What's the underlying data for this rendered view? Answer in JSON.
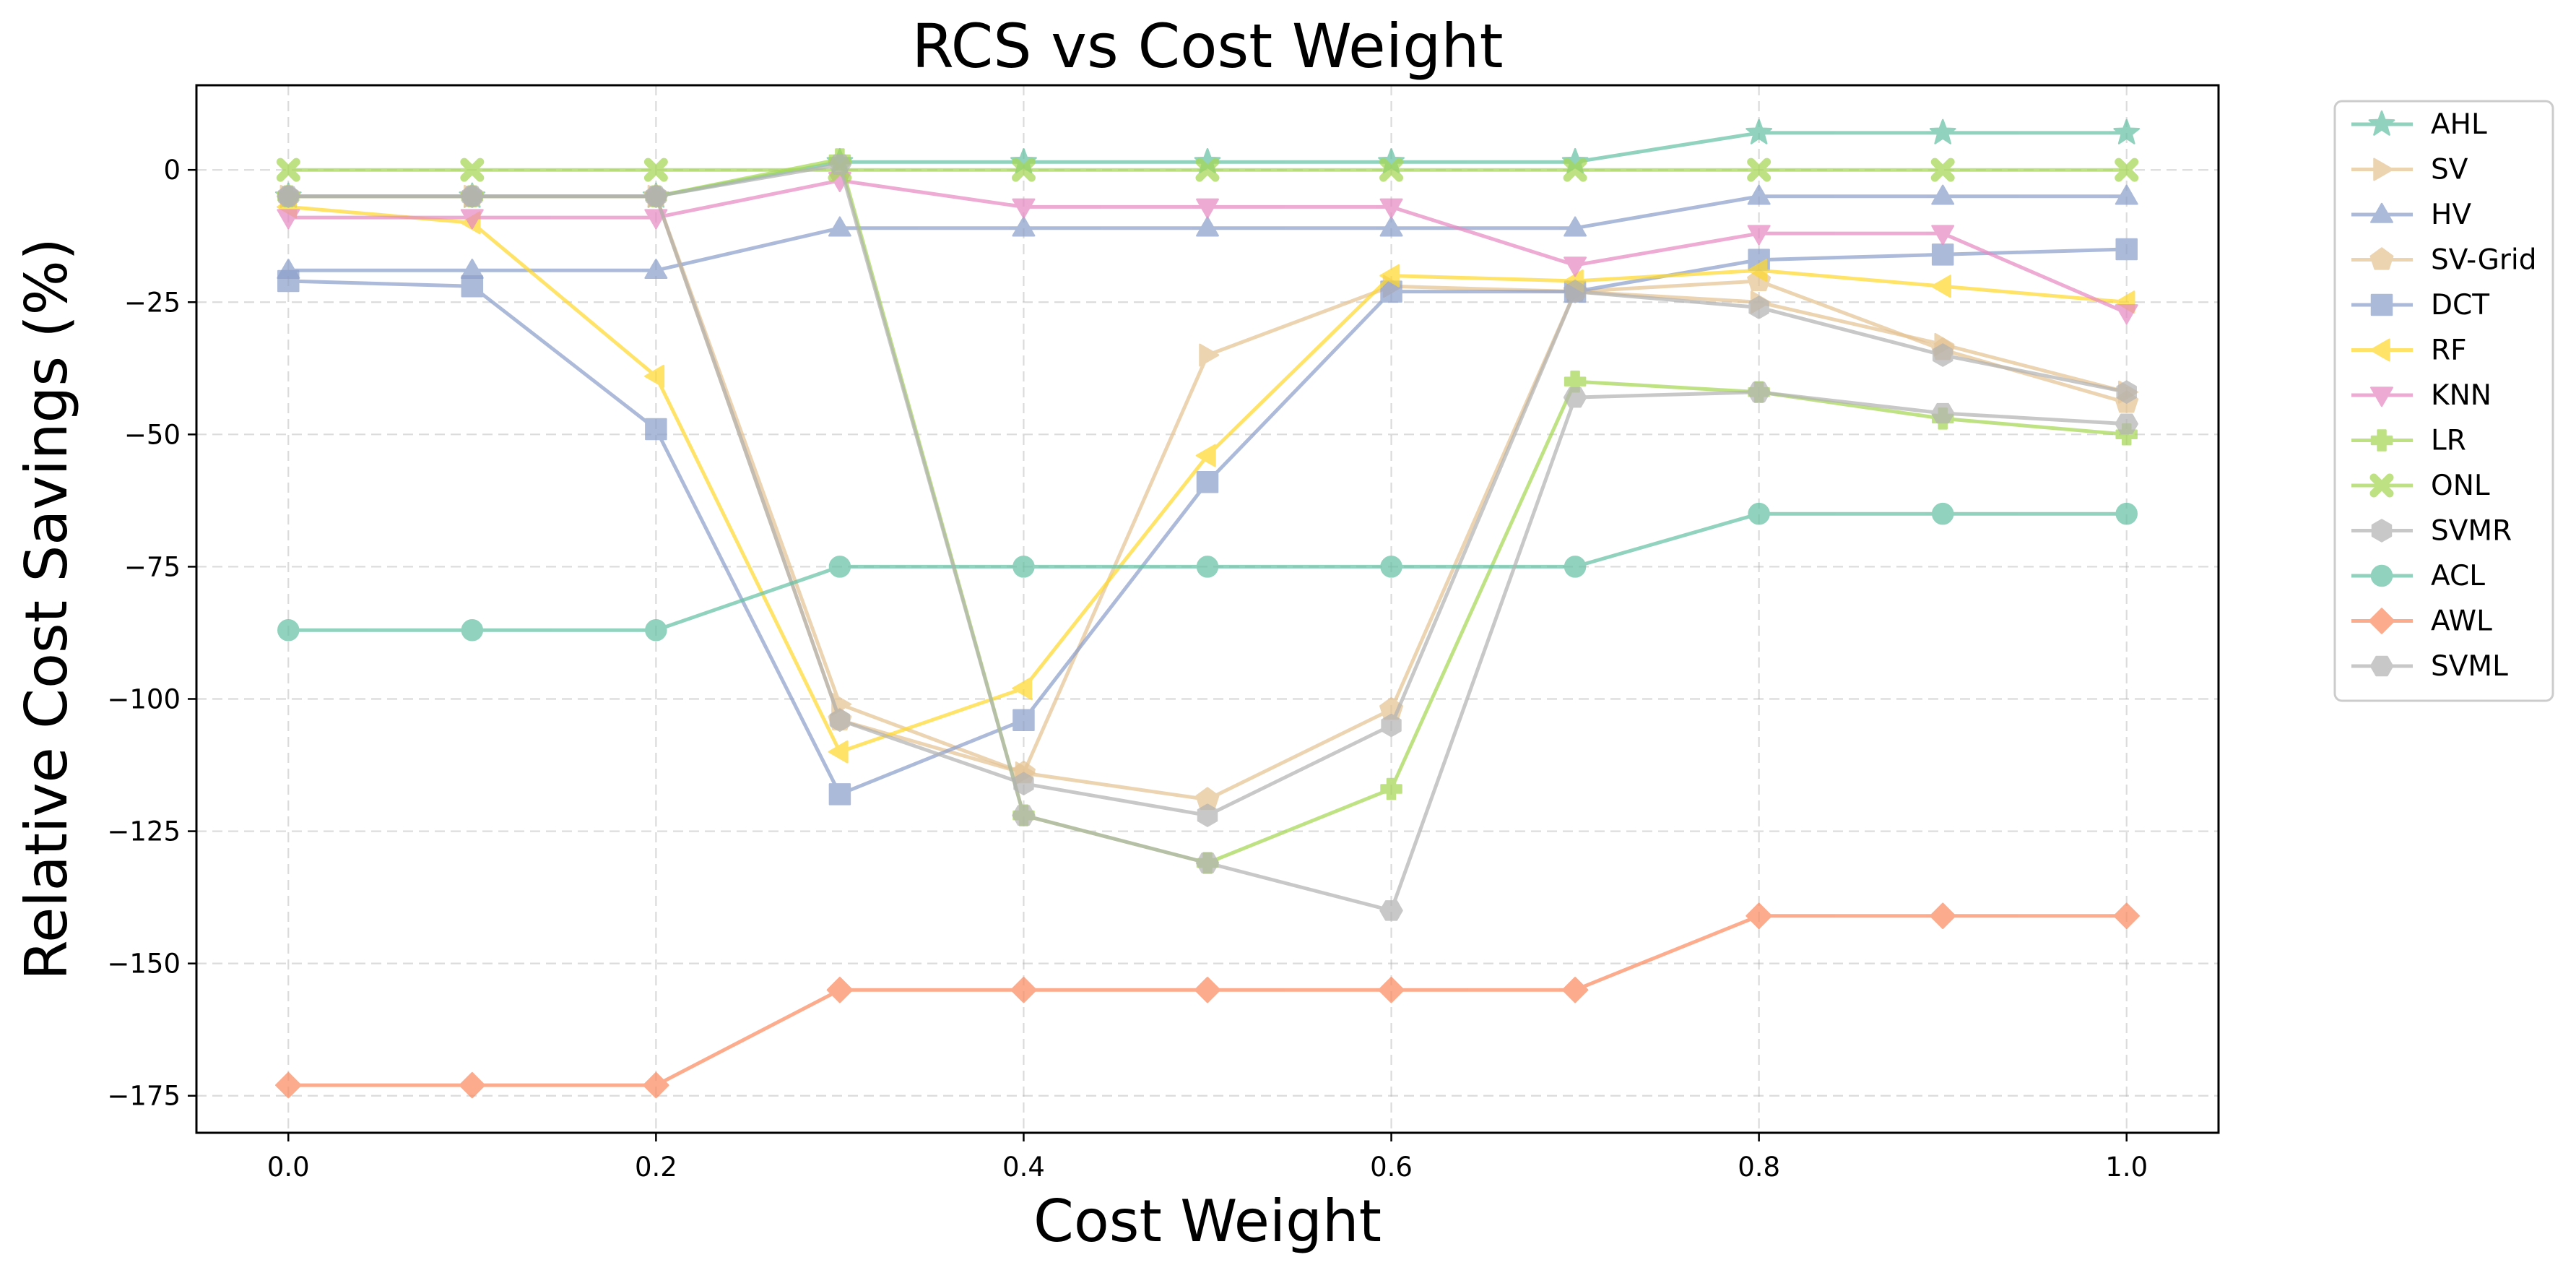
{
  "chart_data": {
    "type": "line",
    "title": "RCS vs Cost Weight",
    "xlabel": "Cost Weight",
    "ylabel": "Relative Cost Savings (%)",
    "xlim": [
      -0.05,
      1.05
    ],
    "ylim": [
      -182,
      16
    ],
    "xticks": [
      0.0,
      0.2,
      0.4,
      0.6,
      0.8,
      1.0
    ],
    "xtick_labels": [
      "0.0",
      "0.2",
      "0.4",
      "0.6",
      "0.8",
      "1.0"
    ],
    "yticks": [
      0,
      -25,
      -50,
      -75,
      -100,
      -125,
      -150,
      -175
    ],
    "ytick_labels": [
      "0",
      "−25",
      "−50",
      "−75",
      "−100",
      "−125",
      "−150",
      "−175"
    ],
    "grid": true,
    "legend_position": "outside-top-right",
    "x": [
      0.0,
      0.1,
      0.2,
      0.3,
      0.4,
      0.5,
      0.6,
      0.7,
      0.8,
      0.9,
      1.0
    ],
    "series": [
      {
        "name": "AHL",
        "marker": "star",
        "color": "#66c2a5",
        "values": [
          -5,
          -5,
          -5,
          1.5,
          1.5,
          1.5,
          1.5,
          1.5,
          7,
          7,
          7
        ]
      },
      {
        "name": "SV",
        "marker": "triangle-right",
        "color": "#e5c494",
        "values": [
          -5,
          -5,
          -5,
          -101,
          -114,
          -35,
          -22,
          -23,
          -25,
          -33,
          -42
        ]
      },
      {
        "name": "HV",
        "marker": "triangle-up",
        "color": "#8da0cb",
        "values": [
          -19,
          -19,
          -19,
          -11,
          -11,
          -11,
          -11,
          -11,
          -5,
          -5,
          -5
        ]
      },
      {
        "name": "SV-Grid",
        "marker": "pentagon",
        "color": "#e5c494",
        "values": [
          -5,
          -5,
          -5,
          -104,
          -114,
          -119,
          -102,
          -23,
          -21,
          -34,
          -44
        ]
      },
      {
        "name": "DCT",
        "marker": "square",
        "color": "#8da0cb",
        "values": [
          -21,
          -22,
          -49,
          -118,
          -104,
          -59,
          -23,
          -23,
          -17,
          -16,
          -15
        ]
      },
      {
        "name": "RF",
        "marker": "triangle-left",
        "color": "#ffd92f",
        "values": [
          -7,
          -10,
          -39,
          -110,
          -98,
          -54,
          -20,
          -21,
          -19,
          -22,
          -25
        ]
      },
      {
        "name": "KNN",
        "marker": "triangle-down",
        "color": "#e78ac3",
        "values": [
          -9,
          -9,
          -9,
          -2,
          -7,
          -7,
          -7,
          -18,
          -12,
          -12,
          -27
        ]
      },
      {
        "name": "LR",
        "marker": "plus",
        "color": "#a6d854",
        "values": [
          -5,
          -5,
          -5,
          2,
          -122,
          -131,
          -117,
          -40,
          -42,
          -47,
          -50
        ]
      },
      {
        "name": "ONL",
        "marker": "x",
        "color": "#a6d854",
        "values": [
          0,
          0,
          0,
          0,
          0,
          0,
          0,
          0,
          0,
          0,
          0
        ]
      },
      {
        "name": "SVMR",
        "marker": "hexagon",
        "color": "#b3b3b3",
        "values": [
          -5,
          -5,
          -5,
          -104,
          -116,
          -122,
          -105,
          -23,
          -26,
          -35,
          -42
        ]
      },
      {
        "name": "ACL",
        "marker": "circle",
        "color": "#66c2a5",
        "values": [
          -87,
          -87,
          -87,
          -75,
          -75,
          -75,
          -75,
          -75,
          -65,
          -65,
          -65
        ]
      },
      {
        "name": "AWL",
        "marker": "diamond",
        "color": "#fc8d62",
        "values": [
          -173,
          -173,
          -173,
          -155,
          -155,
          -155,
          -155,
          -155,
          -141,
          -141,
          -141
        ]
      },
      {
        "name": "SVML",
        "marker": "hexagon2",
        "color": "#b3b3b3",
        "values": [
          -5,
          -5,
          -5,
          1,
          -122,
          -131,
          -140,
          -43,
          -42,
          -46,
          -48
        ]
      }
    ]
  }
}
